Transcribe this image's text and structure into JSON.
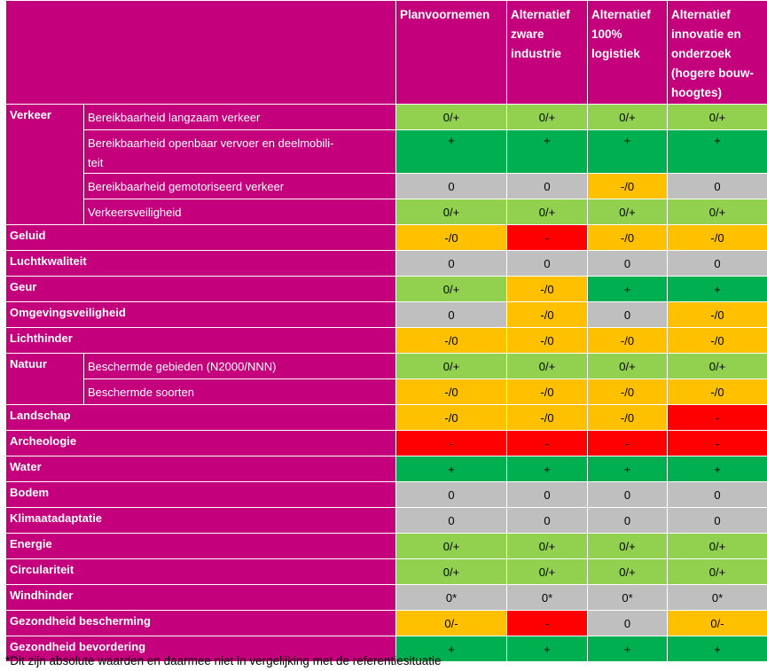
{
  "colors": {
    "header_bg": "#c4007c",
    "0/+": "#92d050",
    "+": "#00b050",
    "0": "#bfbfbf",
    "-/0": "#ffc000",
    "0/-": "#ffc000",
    "-": "#ff0000",
    "0*": "#bfbfbf"
  },
  "headers": [
    "Planvoornemen",
    "Alternatief zware industrie",
    "Alternatief 100% logistiek",
    "Alternatief innovatie en onderzoek (hogere bouw-hoogtes)"
  ],
  "header_lines": [
    [
      "Planvoornemen"
    ],
    [
      "Alternatief",
      "zware",
      "industrie"
    ],
    [
      "Alternatief",
      "100%",
      "logistiek"
    ],
    [
      "Alternatief",
      "innovatie en",
      "onderzoek",
      "(hogere bouw-",
      "hoogtes)"
    ]
  ],
  "rows": [
    {
      "category": "Verkeer",
      "sub": "Bereikbaarheid langzaam verkeer",
      "values": [
        "0/+",
        "0/+",
        "0/+",
        "0/+"
      ]
    },
    {
      "category": "",
      "sub": "Bereikbaarheid openbaar vervoer en deelmobiliteit",
      "sub_lines": [
        "Bereikbaarheid openbaar vervoer en deelmobili-",
        "teit"
      ],
      "values": [
        "+",
        "+",
        "+",
        "+"
      ]
    },
    {
      "category": "",
      "sub": "Bereikbaarheid gemotoriseerd verkeer",
      "values": [
        "0",
        "0",
        "-/0",
        "0"
      ]
    },
    {
      "category": "",
      "sub": "Verkeersveiligheid",
      "values": [
        "0/+",
        "0/+",
        "0/+",
        "0/+"
      ]
    },
    {
      "category": "Geluid",
      "sub": "",
      "values": [
        "-/0",
        "-",
        "-/0",
        "-/0"
      ]
    },
    {
      "category": "Luchtkwaliteit",
      "sub": "",
      "values": [
        "0",
        "0",
        "0",
        "0"
      ]
    },
    {
      "category": "Geur",
      "sub": "",
      "values": [
        "0/+",
        "-/0",
        "+",
        "+"
      ]
    },
    {
      "category": "Omgevingsveiligheid",
      "sub": "",
      "values": [
        "0",
        "-/0",
        "0",
        "-/0"
      ]
    },
    {
      "category": "Lichthinder",
      "sub": "",
      "values": [
        "-/0",
        "-/0",
        "-/0",
        "-/0"
      ]
    },
    {
      "category": "Natuur",
      "sub": "Beschermde gebieden (N2000/NNN)",
      "values": [
        "0/+",
        "0/+",
        "0/+",
        "0/+"
      ]
    },
    {
      "category": "",
      "sub": "Beschermde soorten",
      "values": [
        "-/0",
        "-/0",
        "-/0",
        "-/0"
      ]
    },
    {
      "category": "Landschap",
      "sub": "",
      "values": [
        "-/0",
        "-/0",
        "-/0",
        "-"
      ]
    },
    {
      "category": "Archeologie",
      "sub": "",
      "values": [
        "-",
        "-",
        "-",
        "-"
      ]
    },
    {
      "category": "Water",
      "sub": "",
      "values": [
        "+",
        "+",
        "+",
        "+"
      ]
    },
    {
      "category": "Bodem",
      "sub": "",
      "values": [
        "0",
        "0",
        "0",
        "0"
      ]
    },
    {
      "category": "Klimaatadaptatie",
      "sub": "",
      "values": [
        "0",
        "0",
        "0",
        "0"
      ]
    },
    {
      "category": "Energie",
      "sub": "",
      "values": [
        "0/+",
        "0/+",
        "0/+",
        "0/+"
      ]
    },
    {
      "category": "Circulariteit",
      "sub": "",
      "values": [
        "0/+",
        "0/+",
        "0/+",
        "0/+"
      ]
    },
    {
      "category": "Windhinder",
      "sub": "",
      "values": [
        "0*",
        "0*",
        "0*",
        "0*"
      ]
    },
    {
      "category": "Gezondheid bescherming",
      "sub": "",
      "values": [
        "0/-",
        "-",
        "0",
        "0/-"
      ]
    },
    {
      "category": "Gezondheid bevordering",
      "sub": "",
      "values": [
        "+",
        "+",
        "+",
        "+"
      ]
    }
  ],
  "footnote": "*Dit zijn absolute waarden en daarmee niet in vergelijking met de referentiesituatie"
}
